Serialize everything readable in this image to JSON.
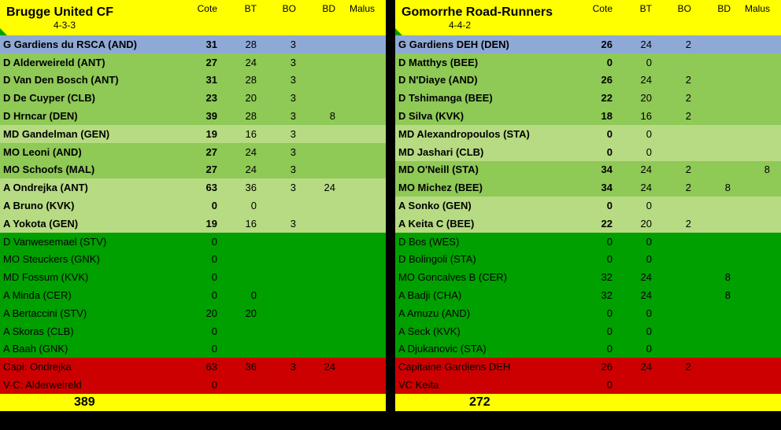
{
  "columns": {
    "cote": "Cote",
    "bt": "BT",
    "bo": "BO",
    "bd": "BD",
    "malus": "Malus"
  },
  "teams": [
    {
      "name": "Brugge United CF",
      "formation": "4-3-3",
      "total": "389",
      "rows": [
        {
          "cls": "r-gk",
          "label": "G Gardiens du RSCA (AND)",
          "cote": "31",
          "bt": "28",
          "bo": "3",
          "bd": "",
          "malus": "",
          "bold": true
        },
        {
          "cls": "r-mid1",
          "label": "D Alderweireld (ANT)",
          "cote": "27",
          "bt": "24",
          "bo": "3",
          "bd": "",
          "malus": "",
          "bold": true
        },
        {
          "cls": "r-mid1",
          "label": "D Van Den Bosch (ANT)",
          "cote": "31",
          "bt": "28",
          "bo": "3",
          "bd": "",
          "malus": "",
          "bold": true
        },
        {
          "cls": "r-mid1",
          "label": "D De Cuyper (CLB)",
          "cote": "23",
          "bt": "20",
          "bo": "3",
          "bd": "",
          "malus": "",
          "bold": true
        },
        {
          "cls": "r-mid1",
          "label": "D Hrncar (DEN)",
          "cote": "39",
          "bt": "28",
          "bo": "3",
          "bd": "8",
          "malus": "",
          "bold": true
        },
        {
          "cls": "r-mid2",
          "label": "MD Gandelman (GEN)",
          "cote": "19",
          "bt": "16",
          "bo": "3",
          "bd": "",
          "malus": "",
          "bold": true
        },
        {
          "cls": "r-mid1",
          "label": "MO Leoni (AND)",
          "cote": "27",
          "bt": "24",
          "bo": "3",
          "bd": "",
          "malus": "",
          "bold": true
        },
        {
          "cls": "r-mid1",
          "label": "MO Schoofs (MAL)",
          "cote": "27",
          "bt": "24",
          "bo": "3",
          "bd": "",
          "malus": "",
          "bold": true
        },
        {
          "cls": "r-mid2",
          "label": "A Ondrejka (ANT)",
          "cote": "63",
          "bt": "36",
          "bo": "3",
          "bd": "24",
          "malus": "",
          "bold": true
        },
        {
          "cls": "r-mid2",
          "label": "A Bruno (KVK)",
          "cote": "0",
          "bt": "0",
          "bo": "",
          "bd": "",
          "malus": "",
          "bold": true
        },
        {
          "cls": "r-mid2",
          "label": "A Yokota (GEN)",
          "cote": "19",
          "bt": "16",
          "bo": "3",
          "bd": "",
          "malus": "",
          "bold": true
        },
        {
          "cls": "r-sub",
          "label": "D Vanwesemael (STV)",
          "cote": "0",
          "bt": "",
          "bo": "",
          "bd": "",
          "malus": "",
          "bold": false
        },
        {
          "cls": "r-sub",
          "label": "MO Steuckers (GNK)",
          "cote": "0",
          "bt": "",
          "bo": "",
          "bd": "",
          "malus": "",
          "bold": false
        },
        {
          "cls": "r-sub",
          "label": "MD Fossum (KVK)",
          "cote": "0",
          "bt": "",
          "bo": "",
          "bd": "",
          "malus": "",
          "bold": false
        },
        {
          "cls": "r-sub",
          "label": "A Minda (CER)",
          "cote": "0",
          "bt": "0",
          "bo": "",
          "bd": "",
          "malus": "",
          "bold": false
        },
        {
          "cls": "r-sub",
          "label": "A Bertaccini (STV)",
          "cote": "20",
          "bt": "20",
          "bo": "",
          "bd": "",
          "malus": "",
          "bold": false
        },
        {
          "cls": "r-sub",
          "label": "A Skoras (CLB)",
          "cote": "0",
          "bt": "",
          "bo": "",
          "bd": "",
          "malus": "",
          "bold": false
        },
        {
          "cls": "r-sub",
          "label": "A Baah (GNK)",
          "cote": "0",
          "bt": "",
          "bo": "",
          "bd": "",
          "malus": "",
          "bold": false
        },
        {
          "cls": "r-cap",
          "label": "Capi: Ondrejka",
          "cote": "63",
          "bt": "36",
          "bo": "3",
          "bd": "24",
          "malus": "",
          "bold": false
        },
        {
          "cls": "r-cap",
          "label": "V-C: Alderweireld",
          "cote": "0",
          "bt": "",
          "bo": "",
          "bd": "",
          "malus": "",
          "bold": false
        }
      ]
    },
    {
      "name": "Gomorrhe Road-Runners",
      "formation": "4-4-2",
      "total": "272",
      "rows": [
        {
          "cls": "r-gk",
          "label": "G Gardiens DEH (DEN)",
          "cote": "26",
          "bt": "24",
          "bo": "2",
          "bd": "",
          "malus": "",
          "bold": true
        },
        {
          "cls": "r-mid1",
          "label": "D Matthys (BEE)",
          "cote": "0",
          "bt": "0",
          "bo": "",
          "bd": "",
          "malus": "",
          "bold": true
        },
        {
          "cls": "r-mid1",
          "label": "D N'Diaye (AND)",
          "cote": "26",
          "bt": "24",
          "bo": "2",
          "bd": "",
          "malus": "",
          "bold": true
        },
        {
          "cls": "r-mid1",
          "label": "D Tshimanga (BEE)",
          "cote": "22",
          "bt": "20",
          "bo": "2",
          "bd": "",
          "malus": "",
          "bold": true
        },
        {
          "cls": "r-mid1",
          "label": "D Silva (KVK)",
          "cote": "18",
          "bt": "16",
          "bo": "2",
          "bd": "",
          "malus": "",
          "bold": true
        },
        {
          "cls": "r-mid2",
          "label": "MD Alexandropoulos (STA)",
          "cote": "0",
          "bt": "0",
          "bo": "",
          "bd": "",
          "malus": "",
          "bold": true
        },
        {
          "cls": "r-mid2",
          "label": "MD Jashari (CLB)",
          "cote": "0",
          "bt": "0",
          "bo": "",
          "bd": "",
          "malus": "",
          "bold": true
        },
        {
          "cls": "r-mid1",
          "label": "MD O'Neill (STA)",
          "cote": "34",
          "bt": "24",
          "bo": "2",
          "bd": "",
          "malus": "8",
          "bold": true
        },
        {
          "cls": "r-mid1",
          "label": "MO Michez (BEE)",
          "cote": "34",
          "bt": "24",
          "bo": "2",
          "bd": "8",
          "malus": "",
          "bold": true
        },
        {
          "cls": "r-mid2",
          "label": "A Sonko (GEN)",
          "cote": "0",
          "bt": "0",
          "bo": "",
          "bd": "",
          "malus": "",
          "bold": true
        },
        {
          "cls": "r-mid2",
          "label": "A Keita C (BEE)",
          "cote": "22",
          "bt": "20",
          "bo": "2",
          "bd": "",
          "malus": "",
          "bold": true
        },
        {
          "cls": "r-sub",
          "label": "D Bos (WES)",
          "cote": "0",
          "bt": "0",
          "bo": "",
          "bd": "",
          "malus": "",
          "bold": false
        },
        {
          "cls": "r-sub",
          "label": "D Bolingoli (STA)",
          "cote": "0",
          "bt": "0",
          "bo": "",
          "bd": "",
          "malus": "",
          "bold": false
        },
        {
          "cls": "r-sub",
          "label": "MO Goncalves B (CER)",
          "cote": "32",
          "bt": "24",
          "bo": "",
          "bd": "8",
          "malus": "",
          "bold": false
        },
        {
          "cls": "r-sub",
          "label": "A Badji (CHA)",
          "cote": "32",
          "bt": "24",
          "bo": "",
          "bd": "8",
          "malus": "",
          "bold": false
        },
        {
          "cls": "r-sub",
          "label": "A Amuzu (AND)",
          "cote": "0",
          "bt": "0",
          "bo": "",
          "bd": "",
          "malus": "",
          "bold": false
        },
        {
          "cls": "r-sub",
          "label": "A Seck (KVK)",
          "cote": "0",
          "bt": "0",
          "bo": "",
          "bd": "",
          "malus": "",
          "bold": false
        },
        {
          "cls": "r-sub",
          "label": "A Djukanovic (STA)",
          "cote": "0",
          "bt": "0",
          "bo": "",
          "bd": "",
          "malus": "",
          "bold": false
        },
        {
          "cls": "r-cap",
          "label": "Capitaine Gardiens DEH",
          "cote": "26",
          "bt": "24",
          "bo": "2",
          "bd": "",
          "malus": "",
          "bold": false
        },
        {
          "cls": "r-cap",
          "label": "VC Keita",
          "cote": "0",
          "bt": "",
          "bo": "",
          "bd": "",
          "malus": "",
          "bold": false
        }
      ]
    }
  ]
}
